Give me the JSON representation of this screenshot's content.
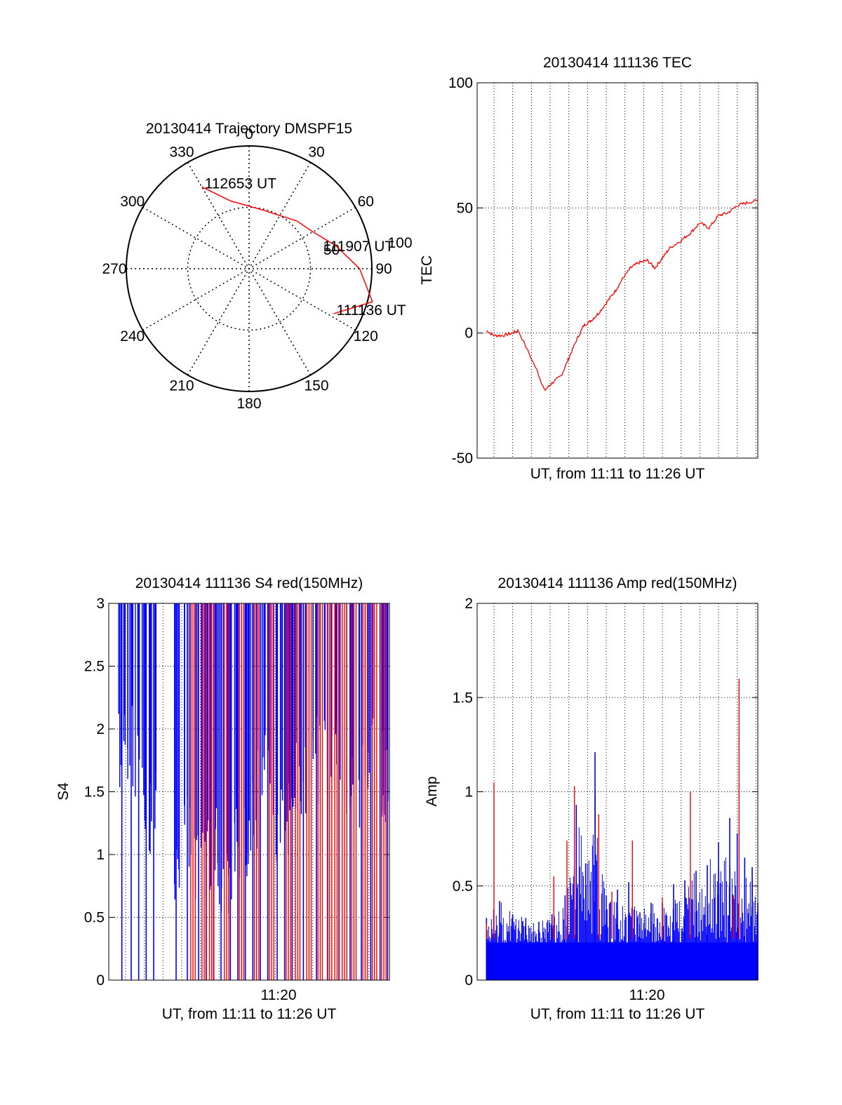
{
  "chart_data": [
    {
      "type": "polar",
      "title": "20130414 Trajectory DMSPF15",
      "angle_labels": [
        "0",
        "30",
        "60",
        "90",
        "120",
        "150",
        "180",
        "210",
        "240",
        "270",
        "300",
        "330"
      ],
      "radius_labels": [
        "50",
        "100"
      ],
      "rlim": [
        0,
        100
      ],
      "grid": true,
      "series": [
        {
          "color": "#ff0000",
          "points": [
            {
              "az": 330,
              "el": 77
            },
            {
              "az": 345,
              "el": 57
            },
            {
              "az": 0,
              "el": 51
            },
            {
              "az": 15,
              "el": 49
            },
            {
              "az": 30,
              "el": 50
            },
            {
              "az": 45,
              "el": 55
            },
            {
              "az": 60,
              "el": 60
            },
            {
              "az": 75,
              "el": 73
            },
            {
              "az": 90,
              "el": 90
            },
            {
              "az": 105,
              "el": 104
            },
            {
              "az": 118,
              "el": 78
            }
          ]
        }
      ],
      "annotations": [
        {
          "text": "112653 UT",
          "az": 330,
          "el": 77
        },
        {
          "text": "111907 UT",
          "az": 75,
          "el": 60
        },
        {
          "text": "111136 UT",
          "az": 118,
          "el": 78
        }
      ]
    },
    {
      "type": "line",
      "title": "20130414 111136 TEC",
      "ylabel": "TEC",
      "xlabel": "UT, from 11:11 to 11:26 UT",
      "ylim": [
        -50,
        100
      ],
      "yticks": [
        "100",
        "50",
        "0",
        "-50"
      ],
      "grid": true,
      "xlim_minutes": [
        11.1,
        26.1
      ],
      "series": [
        {
          "color": "#ff0000",
          "x_minutes": [
            11.6,
            12.0,
            12.5,
            13.0,
            13.3,
            14.3,
            14.7,
            15.1,
            15.6,
            16.0,
            16.4,
            16.8,
            17.2,
            17.6,
            18.1,
            18.5,
            18.9,
            19.3,
            19.7,
            20.2,
            20.6,
            21.0,
            21.4,
            22.0,
            22.5,
            23.0,
            23.5,
            24.0,
            24.5,
            25.0,
            25.5,
            26.1
          ],
          "y": [
            1,
            -1,
            -1,
            0,
            1,
            -15,
            -23,
            -20,
            -17,
            -10,
            -3,
            3,
            5,
            8,
            13,
            17,
            22,
            26,
            28,
            29,
            26,
            30,
            34,
            37,
            40,
            44,
            42,
            47,
            48,
            51,
            52,
            53
          ]
        }
      ]
    },
    {
      "type": "bar",
      "title": "20130414 111136 S4 red(150MHz)",
      "ylabel": "S4",
      "xlabel": "UT, from 11:11 to 11:26 UT",
      "xtick_label": "11:20",
      "ylim": [
        0,
        3
      ],
      "yticks": [
        "0",
        "0.5",
        "1",
        "1.5",
        "2",
        "2.5",
        "3"
      ],
      "grid": true,
      "xlim_minutes": [
        11.1,
        26.1
      ],
      "series": [
        {
          "color": "#0000ff",
          "spikes_minutes": [
            11.8,
            12.3,
            12.7,
            13.1,
            13.5,
            14.7,
            15.3,
            15.9,
            16.3,
            16.7,
            17.1,
            17.6,
            18.0,
            18.4,
            18.8,
            19.2,
            19.6,
            20.1,
            20.5,
            20.9,
            21.5,
            22.2,
            22.8,
            23.4,
            24.0,
            24.6,
            25.1,
            25.6,
            26.0
          ],
          "upper_envelope_min": [
            1.5,
            1.5,
            1.4,
            1.0,
            1.2,
            0.4,
            0.9,
            0.6,
            0.9,
            0.7,
            0.5,
            0.5,
            0.8,
            0.8,
            1.0,
            1.2,
            1.3,
            0.9,
            1.0,
            1.2,
            1.3,
            1.4,
            1.5,
            1.5,
            1.1,
            1.2,
            1.4,
            1.3,
            1.2
          ]
        },
        {
          "color": "#ff0000",
          "spikes_minutes": [
            15.6,
            16.2,
            16.6,
            17.4,
            18.2,
            19.0,
            19.8,
            20.7,
            21.2,
            21.8,
            22.4,
            22.9,
            23.3,
            23.7,
            24.2,
            24.8,
            25.3,
            25.8
          ]
        }
      ]
    },
    {
      "type": "bar",
      "title": "20130414 111136 Amp red(150MHz)",
      "ylabel": "Amp",
      "xlabel": "UT, from 11:11 to 11:26 UT",
      "xtick_label": "11:20",
      "ylim": [
        0,
        2
      ],
      "yticks": [
        "0",
        "0.5",
        "1",
        "1.5",
        "2"
      ],
      "grid": true,
      "xlim_minutes": [
        11.1,
        26.1
      ],
      "series": [
        {
          "color": "#0000ff",
          "peaks_minutes": [
            11.6,
            12.3,
            13.0,
            13.7,
            14.4,
            15.1,
            15.8,
            16.4,
            16.9,
            17.4,
            18.0,
            18.6,
            19.2,
            19.8,
            20.4,
            21.0,
            21.6,
            22.2,
            22.8,
            23.4,
            24.0,
            24.6,
            25.0,
            25.4,
            25.8,
            26.1
          ],
          "peaks": [
            0.33,
            0.42,
            0.35,
            0.33,
            0.31,
            0.35,
            0.45,
            0.93,
            0.62,
            1.21,
            0.45,
            0.48,
            0.52,
            0.36,
            0.41,
            0.41,
            0.51,
            0.53,
            0.58,
            0.61,
            0.73,
            0.86,
            0.78,
            0.65,
            0.6,
            0.41
          ]
        },
        {
          "color": "#ff0000",
          "peaks_minutes": [
            11.6,
            12.0,
            15.2,
            15.9,
            16.3,
            17.6,
            18.3,
            19.4,
            21.0,
            22.5,
            24.8,
            25.1
          ],
          "peaks": [
            0.3,
            1.05,
            0.55,
            0.74,
            1.03,
            0.88,
            0.47,
            0.74,
            0.44,
            1.0,
            0.45,
            1.6
          ]
        }
      ]
    }
  ]
}
